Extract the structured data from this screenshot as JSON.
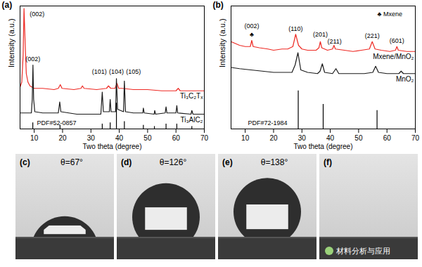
{
  "chart_data": [
    {
      "type": "line",
      "panel_label": "(a)",
      "xlabel": "Two theta (degree)",
      "ylabel": "Intensity (a.u.)",
      "xlim": [
        5,
        70
      ],
      "xticks": [
        10,
        20,
        30,
        40,
        50,
        60,
        70
      ],
      "ylim": [
        0,
        100
      ],
      "tick_labels": "x",
      "series": [
        {
          "name": "Ti₃C₂Tₓ",
          "color": "#ee2a24",
          "x": [
            5,
            5.6,
            6.1,
            6.4,
            6.8,
            7.2,
            7.8,
            8.5,
            10,
            13,
            17,
            18.5,
            19.2,
            19.8,
            24,
            26.5,
            27,
            27.6,
            32,
            35.5,
            36.2,
            37,
            38.5,
            39.2,
            39.8,
            41,
            45,
            50,
            55,
            60,
            60.8,
            61.5,
            65,
            70
          ],
          "values": [
            34,
            38,
            60,
            98,
            70,
            45,
            38,
            35,
            33,
            33,
            32,
            33,
            36,
            33,
            32,
            33,
            35,
            33,
            32,
            33,
            35,
            33,
            33,
            37,
            33,
            33,
            32,
            32,
            31,
            31,
            33,
            31,
            31,
            31
          ]
        },
        {
          "name": "Ti₃AlC₂",
          "color": "#1a1a1a",
          "x": [
            5,
            7,
            9,
            9.3,
            9.55,
            9.8,
            10.2,
            13,
            18.5,
            19,
            19.4,
            25,
            33.5,
            34,
            34.4,
            36.5,
            36.8,
            37.1,
            38.7,
            39,
            39.4,
            41.5,
            41.8,
            42.2,
            45,
            48.3,
            48.5,
            48.8,
            52.3,
            52.5,
            52.8,
            56.2,
            56.5,
            56.8,
            60,
            60.3,
            60.6,
            65.3,
            65.6,
            66,
            70
          ],
          "values": [
            13,
            13,
            13,
            24,
            52,
            24,
            14,
            13,
            13,
            22,
            14,
            12,
            12,
            30,
            14,
            14,
            24,
            14,
            14,
            41,
            16,
            14,
            39,
            14,
            13,
            13,
            17,
            13,
            12,
            15,
            12,
            13,
            18,
            13,
            13,
            19,
            13,
            12,
            15,
            12,
            12
          ]
        }
      ],
      "reference": {
        "name": "PDF#52-0857",
        "x": [
          9.5,
          19.1,
          34,
          36.8,
          39,
          41.8,
          48.5,
          52.4,
          56.5,
          60.3,
          65.6
        ],
        "values": [
          5,
          3,
          4,
          5,
          21,
          6,
          3,
          2,
          4,
          4,
          2
        ]
      },
      "annotations": [
        {
          "text": "(002)",
          "x": 11,
          "y": 92
        },
        {
          "text": "(002)",
          "x": 9.5,
          "y": 55
        },
        {
          "text": "(101)",
          "x": 33,
          "y": 45
        },
        {
          "text": "(104)",
          "x": 39,
          "y": 45
        },
        {
          "text": "(105)",
          "x": 45,
          "y": 45
        }
      ]
    },
    {
      "type": "line",
      "panel_label": "(b)",
      "xlabel": "Two theta (degree)",
      "ylabel": "Intensity (a.u.)",
      "xlim": [
        5,
        70
      ],
      "xticks": [
        10,
        20,
        30,
        40,
        50,
        60,
        70
      ],
      "ylim": [
        0,
        100
      ],
      "tick_labels": "x",
      "series": [
        {
          "name": "Mxene/MnO₂",
          "color": "#ee2a24",
          "x": [
            5,
            6,
            8,
            10,
            11.8,
            12.3,
            12.8,
            15,
            18,
            20,
            23,
            25,
            26.8,
            27.8,
            28.8,
            30,
            32,
            35,
            36,
            36.5,
            37,
            39,
            40.8,
            41.3,
            41.8,
            45,
            48,
            51,
            53.8,
            54.8,
            55.8,
            58,
            61,
            63,
            63.5,
            64,
            67,
            70
          ],
          "values": [
            71,
            70,
            68,
            67,
            67,
            72,
            67,
            66,
            65,
            64,
            65,
            65,
            67,
            77,
            68,
            65,
            64,
            64,
            66,
            71,
            66,
            64,
            65,
            68,
            65,
            64,
            63,
            64,
            65,
            71,
            65,
            64,
            63,
            64,
            67,
            64,
            63,
            63
          ]
        },
        {
          "name": "MnO₂",
          "color": "#1a1a1a",
          "x": [
            5,
            8,
            12,
            16,
            20,
            24,
            26.5,
            27.6,
            28.6,
            29.6,
            32,
            35.5,
            36.4,
            37.2,
            38,
            40.8,
            42,
            43,
            47,
            52,
            55,
            56,
            57,
            60,
            64.2,
            65,
            65.8,
            70
          ],
          "values": [
            50,
            49,
            48,
            47,
            46,
            46,
            46,
            52,
            62,
            48,
            46,
            45,
            47,
            53,
            46,
            45,
            49,
            45,
            45,
            45,
            46,
            51,
            46,
            45,
            45,
            47,
            45,
            45
          ]
        }
      ],
      "reference": {
        "name": "PDF#72-1984",
        "x": [
          28.7,
          37.5,
          56.5
        ],
        "values": [
          31,
          20,
          15
        ]
      },
      "annotations": [
        {
          "text": "(002)",
          "x": 12.3,
          "y": 82
        },
        {
          "text": "♣",
          "x": 12.3,
          "y": 75
        },
        {
          "text": "(110)",
          "x": 27.8,
          "y": 80
        },
        {
          "text": "(201)",
          "x": 36.5,
          "y": 75
        },
        {
          "text": "(211)",
          "x": 41.5,
          "y": 69.5
        },
        {
          "text": "(221)",
          "x": 54.8,
          "y": 74
        },
        {
          "text": "(601)",
          "x": 63.5,
          "y": 70
        },
        {
          "text": "♣ Mxene",
          "x": 61,
          "y": 92
        }
      ]
    }
  ],
  "photos": [
    {
      "label": "(c)",
      "angle": 67,
      "angle_label": "θ=67°"
    },
    {
      "label": "(d)",
      "angle": 126,
      "angle_label": "θ=126°"
    },
    {
      "label": "(e)",
      "angle": 138,
      "angle_label": "θ=138°"
    },
    {
      "label": "(f)"
    }
  ],
  "watermark": "材料分析与应用"
}
